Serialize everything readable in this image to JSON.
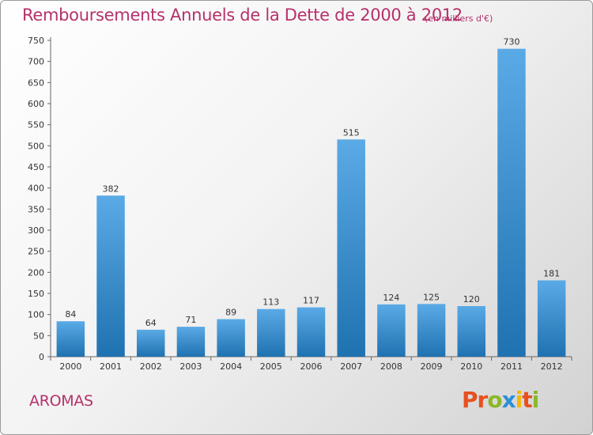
{
  "header": {
    "title": "Remboursements Annuels de la Dette de 2000 à 2012",
    "subtitle": "(en milliers d'€)"
  },
  "footer": {
    "commune": "AROMAS",
    "logo_text": "Proxiti"
  },
  "colors": {
    "title": "#b5316b",
    "bar_light": "#5aaae6",
    "bar_dark": "#1f72b0",
    "logo": [
      "#e8501e",
      "#e8501e",
      "#8ab827",
      "#2a8fd6",
      "#f2b705",
      "#e8501e",
      "#8ab827"
    ]
  },
  "chart_data": {
    "type": "bar",
    "title": "Remboursements Annuels de la Dette de 2000 à 2012",
    "categories": [
      "2000",
      "2001",
      "2002",
      "2003",
      "2004",
      "2005",
      "2006",
      "2007",
      "2008",
      "2009",
      "2010",
      "2011",
      "2012"
    ],
    "values": [
      84,
      382,
      64,
      71,
      89,
      113,
      117,
      515,
      124,
      125,
      120,
      730,
      181
    ],
    "ylim": [
      0,
      750
    ],
    "yticks": [
      0,
      50,
      100,
      150,
      200,
      250,
      300,
      350,
      400,
      450,
      500,
      550,
      600,
      650,
      700,
      750
    ],
    "grid": false,
    "legend": "none"
  }
}
